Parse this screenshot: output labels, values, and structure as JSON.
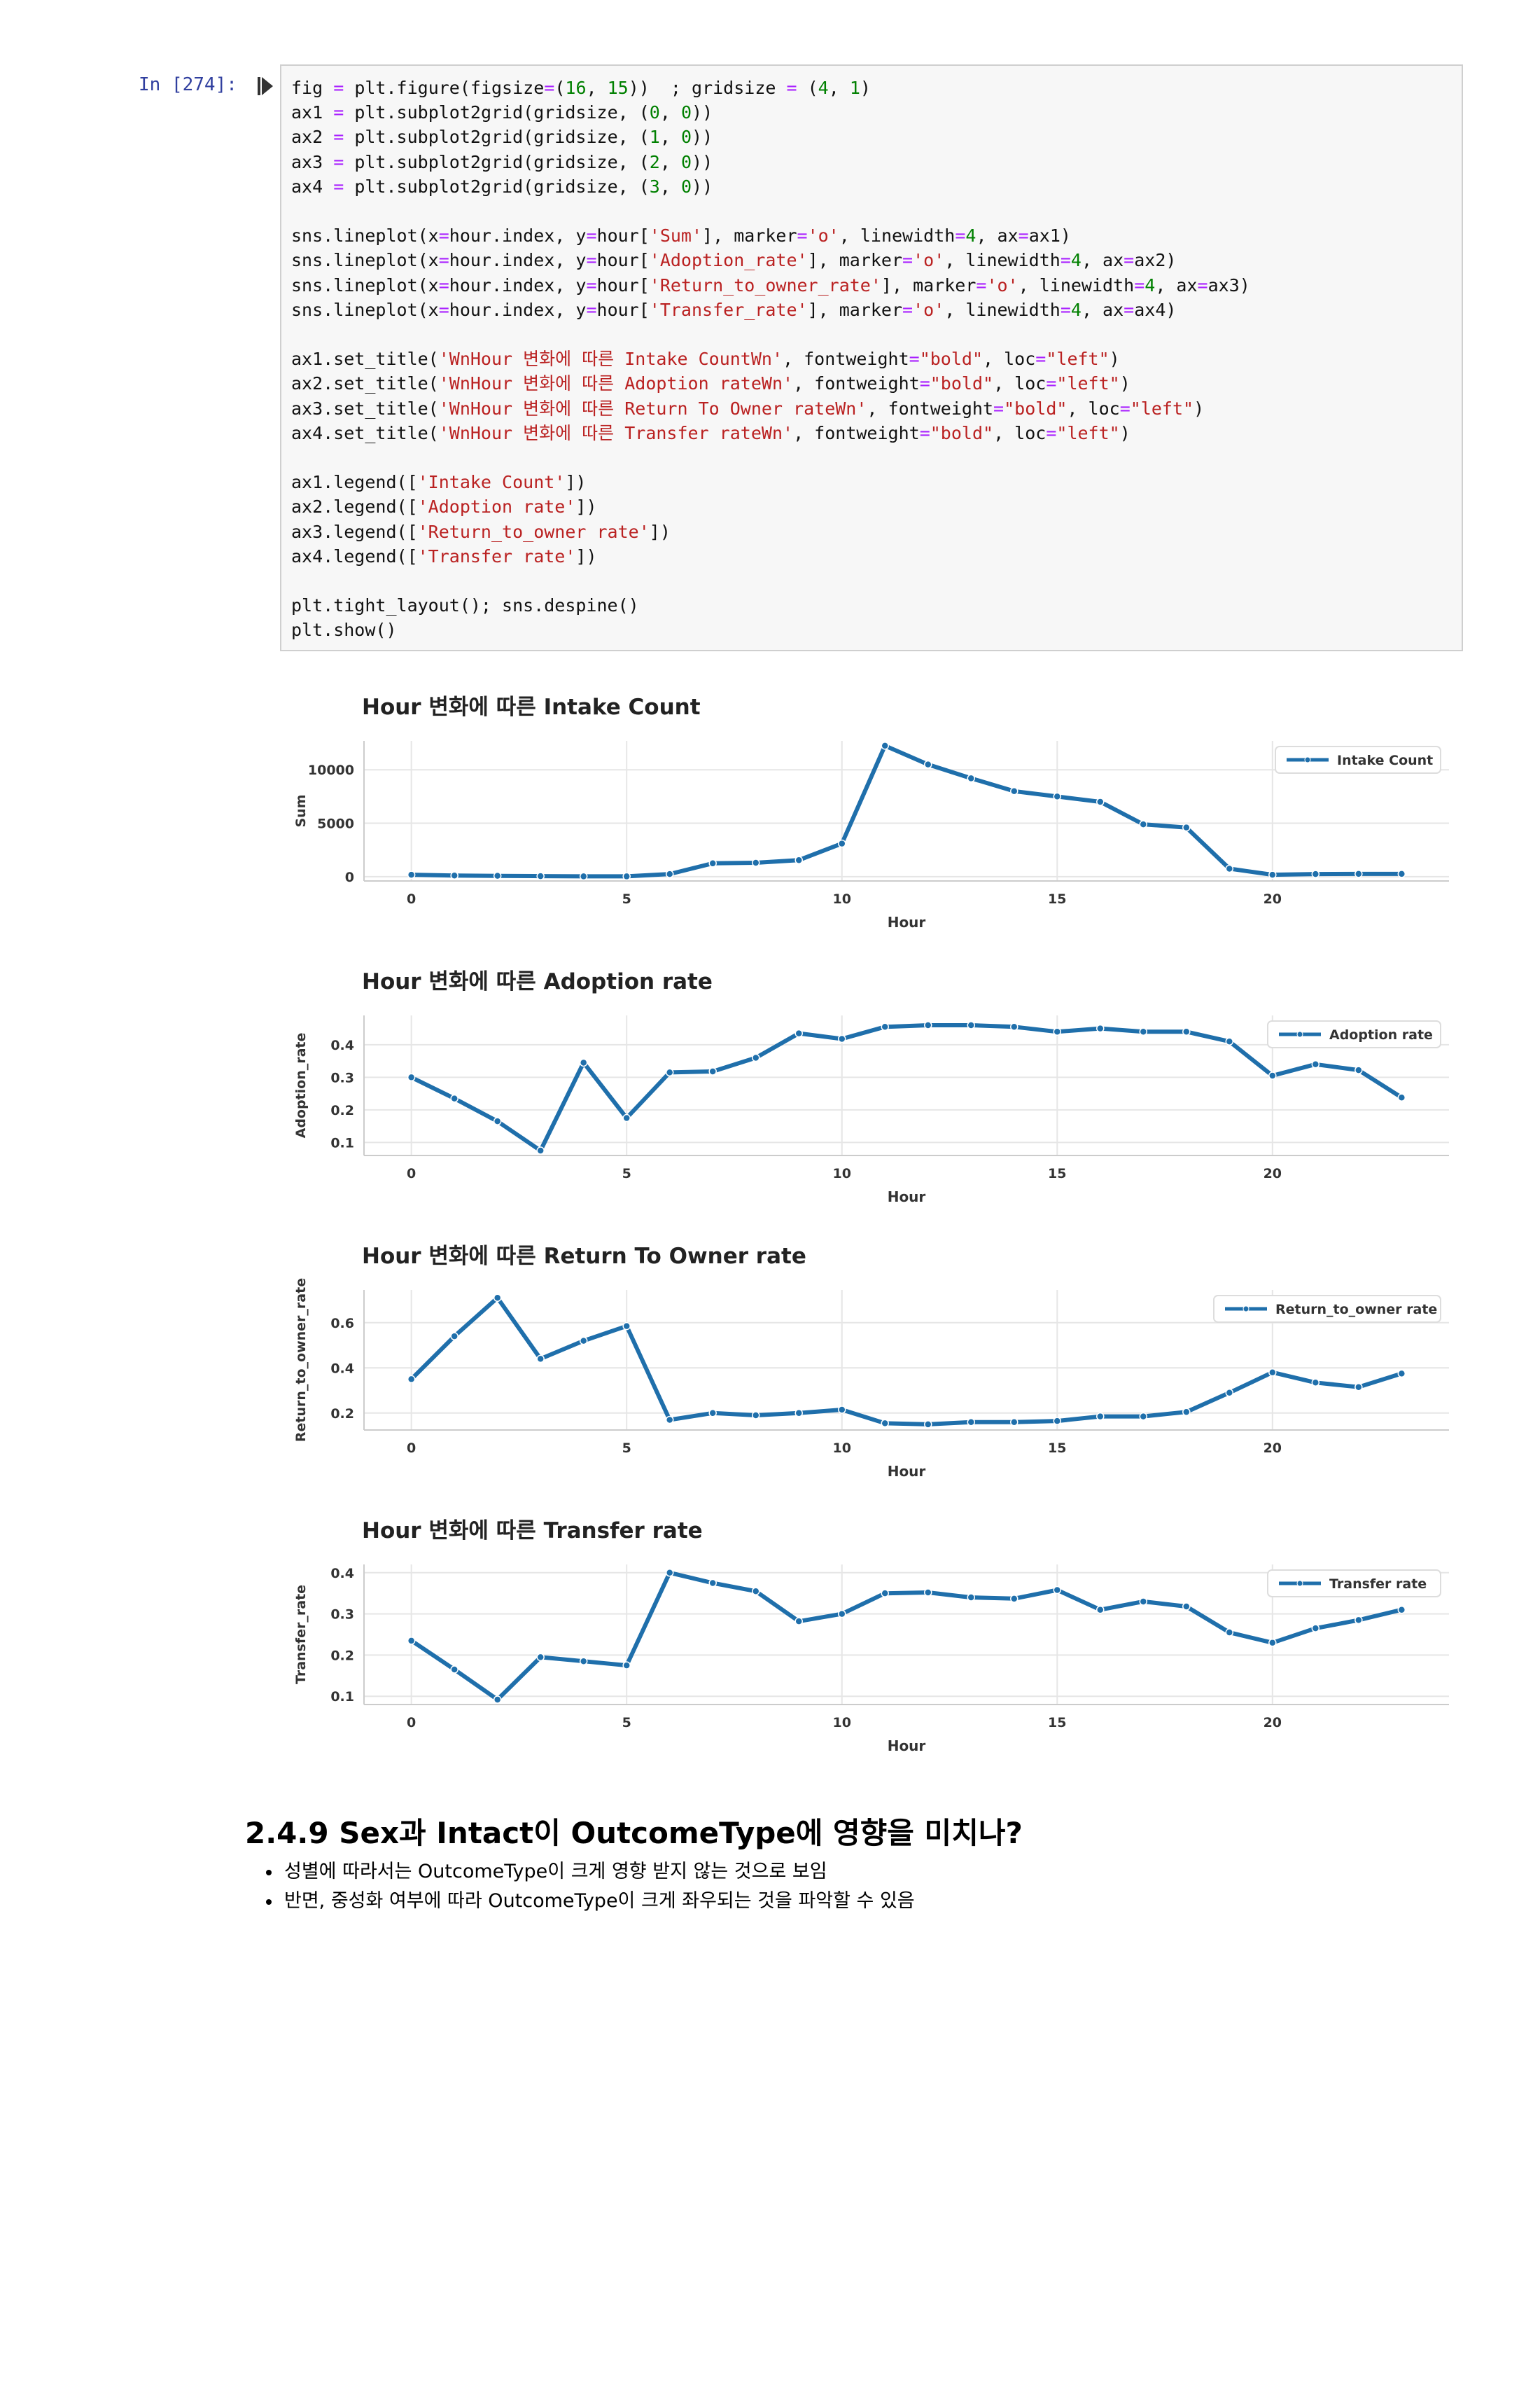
{
  "cell": {
    "prompt": "In [274]:",
    "code_lines": [
      [
        [
          "t",
          "fig "
        ],
        [
          "o",
          "="
        ],
        [
          "t",
          " plt.figure(figsize"
        ],
        [
          "o",
          "="
        ],
        [
          "t",
          "("
        ],
        [
          "n",
          "16"
        ],
        [
          "t",
          ", "
        ],
        [
          "n",
          "15"
        ],
        [
          "t",
          "))  ; gridsize "
        ],
        [
          "o",
          "="
        ],
        [
          "t",
          " ("
        ],
        [
          "n",
          "4"
        ],
        [
          "t",
          ", "
        ],
        [
          "n",
          "1"
        ],
        [
          "t",
          ")"
        ]
      ],
      [
        [
          "t",
          "ax1 "
        ],
        [
          "o",
          "="
        ],
        [
          "t",
          " plt.subplot2grid(gridsize, ("
        ],
        [
          "n",
          "0"
        ],
        [
          "t",
          ", "
        ],
        [
          "n",
          "0"
        ],
        [
          "t",
          "))"
        ]
      ],
      [
        [
          "t",
          "ax2 "
        ],
        [
          "o",
          "="
        ],
        [
          "t",
          " plt.subplot2grid(gridsize, ("
        ],
        [
          "n",
          "1"
        ],
        [
          "t",
          ", "
        ],
        [
          "n",
          "0"
        ],
        [
          "t",
          "))"
        ]
      ],
      [
        [
          "t",
          "ax3 "
        ],
        [
          "o",
          "="
        ],
        [
          "t",
          " plt.subplot2grid(gridsize, ("
        ],
        [
          "n",
          "2"
        ],
        [
          "t",
          ", "
        ],
        [
          "n",
          "0"
        ],
        [
          "t",
          "))"
        ]
      ],
      [
        [
          "t",
          "ax4 "
        ],
        [
          "o",
          "="
        ],
        [
          "t",
          " plt.subplot2grid(gridsize, ("
        ],
        [
          "n",
          "3"
        ],
        [
          "t",
          ", "
        ],
        [
          "n",
          "0"
        ],
        [
          "t",
          "))"
        ]
      ],
      [],
      [
        [
          "t",
          "sns.lineplot(x"
        ],
        [
          "o",
          "="
        ],
        [
          "t",
          "hour.index, y"
        ],
        [
          "o",
          "="
        ],
        [
          "t",
          "hour["
        ],
        [
          "s",
          "'Sum'"
        ],
        [
          "t",
          "], marker"
        ],
        [
          "o",
          "="
        ],
        [
          "s",
          "'o'"
        ],
        [
          "t",
          ", linewidth"
        ],
        [
          "o",
          "="
        ],
        [
          "n",
          "4"
        ],
        [
          "t",
          ", ax"
        ],
        [
          "o",
          "="
        ],
        [
          "t",
          "ax1)"
        ]
      ],
      [
        [
          "t",
          "sns.lineplot(x"
        ],
        [
          "o",
          "="
        ],
        [
          "t",
          "hour.index, y"
        ],
        [
          "o",
          "="
        ],
        [
          "t",
          "hour["
        ],
        [
          "s",
          "'Adoption_rate'"
        ],
        [
          "t",
          "], marker"
        ],
        [
          "o",
          "="
        ],
        [
          "s",
          "'o'"
        ],
        [
          "t",
          ", linewidth"
        ],
        [
          "o",
          "="
        ],
        [
          "n",
          "4"
        ],
        [
          "t",
          ", ax"
        ],
        [
          "o",
          "="
        ],
        [
          "t",
          "ax2)"
        ]
      ],
      [
        [
          "t",
          "sns.lineplot(x"
        ],
        [
          "o",
          "="
        ],
        [
          "t",
          "hour.index, y"
        ],
        [
          "o",
          "="
        ],
        [
          "t",
          "hour["
        ],
        [
          "s",
          "'Return_to_owner_rate'"
        ],
        [
          "t",
          "], marker"
        ],
        [
          "o",
          "="
        ],
        [
          "s",
          "'o'"
        ],
        [
          "t",
          ", linewidth"
        ],
        [
          "o",
          "="
        ],
        [
          "n",
          "4"
        ],
        [
          "t",
          ", ax"
        ],
        [
          "o",
          "="
        ],
        [
          "t",
          "ax3)"
        ]
      ],
      [
        [
          "t",
          "sns.lineplot(x"
        ],
        [
          "o",
          "="
        ],
        [
          "t",
          "hour.index, y"
        ],
        [
          "o",
          "="
        ],
        [
          "t",
          "hour["
        ],
        [
          "s",
          "'Transfer_rate'"
        ],
        [
          "t",
          "], marker"
        ],
        [
          "o",
          "="
        ],
        [
          "s",
          "'o'"
        ],
        [
          "t",
          ", linewidth"
        ],
        [
          "o",
          "="
        ],
        [
          "n",
          "4"
        ],
        [
          "t",
          ", ax"
        ],
        [
          "o",
          "="
        ],
        [
          "t",
          "ax4)"
        ]
      ],
      [],
      [
        [
          "t",
          "ax1.set_title("
        ],
        [
          "s",
          "'WnHour 변화에 따른 Intake CountWn'"
        ],
        [
          "t",
          ", fontweight"
        ],
        [
          "o",
          "="
        ],
        [
          "s",
          "\"bold\""
        ],
        [
          "t",
          ", loc"
        ],
        [
          "o",
          "="
        ],
        [
          "s",
          "\"left\""
        ],
        [
          "t",
          ")"
        ]
      ],
      [
        [
          "t",
          "ax2.set_title("
        ],
        [
          "s",
          "'WnHour 변화에 따른 Adoption rateWn'"
        ],
        [
          "t",
          ", fontweight"
        ],
        [
          "o",
          "="
        ],
        [
          "s",
          "\"bold\""
        ],
        [
          "t",
          ", loc"
        ],
        [
          "o",
          "="
        ],
        [
          "s",
          "\"left\""
        ],
        [
          "t",
          ")"
        ]
      ],
      [
        [
          "t",
          "ax3.set_title("
        ],
        [
          "s",
          "'WnHour 변화에 따른 Return To Owner rateWn'"
        ],
        [
          "t",
          ", fontweight"
        ],
        [
          "o",
          "="
        ],
        [
          "s",
          "\"bold\""
        ],
        [
          "t",
          ", loc"
        ],
        [
          "o",
          "="
        ],
        [
          "s",
          "\"left\""
        ],
        [
          "t",
          ")"
        ]
      ],
      [
        [
          "t",
          "ax4.set_title("
        ],
        [
          "s",
          "'WnHour 변화에 따른 Transfer rateWn'"
        ],
        [
          "t",
          ", fontweight"
        ],
        [
          "o",
          "="
        ],
        [
          "s",
          "\"bold\""
        ],
        [
          "t",
          ", loc"
        ],
        [
          "o",
          "="
        ],
        [
          "s",
          "\"left\""
        ],
        [
          "t",
          ")"
        ]
      ],
      [],
      [
        [
          "t",
          "ax1.legend(["
        ],
        [
          "s",
          "'Intake Count'"
        ],
        [
          "t",
          "])"
        ]
      ],
      [
        [
          "t",
          "ax2.legend(["
        ],
        [
          "s",
          "'Adoption rate'"
        ],
        [
          "t",
          "])"
        ]
      ],
      [
        [
          "t",
          "ax3.legend(["
        ],
        [
          "s",
          "'Return_to_owner rate'"
        ],
        [
          "t",
          "])"
        ]
      ],
      [
        [
          "t",
          "ax4.legend(["
        ],
        [
          "s",
          "'Transfer rate'"
        ],
        [
          "t",
          "])"
        ]
      ],
      [],
      [
        [
          "t",
          "plt.tight_layout(); sns.despine()"
        ]
      ],
      [
        [
          "t",
          "plt.show()"
        ]
      ]
    ]
  },
  "colors": {
    "line": "#1f6fab",
    "grid": "#e6e6e6",
    "axis": "#cccccc"
  },
  "chart_data": [
    {
      "type": "line",
      "title": "Hour 변화에 따른 Intake Count",
      "xlabel": "Hour",
      "ylabel": "Sum",
      "legend": "Intake Count",
      "legend_position": "top-right",
      "grid": true,
      "xlim": [
        -1.1,
        24.1
      ],
      "ylim": [
        -400,
        12700
      ],
      "xticks": [
        0,
        5,
        10,
        15,
        20
      ],
      "yticks": [
        0,
        5000,
        10000
      ],
      "x": [
        0,
        1,
        2,
        3,
        4,
        5,
        6,
        7,
        8,
        9,
        10,
        11,
        12,
        13,
        14,
        15,
        16,
        17,
        18,
        19,
        20,
        21,
        22,
        23
      ],
      "values": [
        180,
        110,
        80,
        50,
        30,
        30,
        250,
        1250,
        1300,
        1550,
        3100,
        12250,
        10500,
        9200,
        8000,
        7500,
        7000,
        4900,
        4600,
        750,
        180,
        250,
        260,
        260
      ]
    },
    {
      "type": "line",
      "title": "Hour 변화에 따른 Adoption rate",
      "xlabel": "Hour",
      "ylabel": "Adoption_rate",
      "legend": "Adoption rate",
      "legend_position": "top-right",
      "grid": true,
      "xlim": [
        -1.1,
        24.1
      ],
      "ylim": [
        0.06,
        0.49
      ],
      "xticks": [
        0,
        5,
        10,
        15,
        20
      ],
      "yticks": [
        0.1,
        0.2,
        0.3,
        0.4
      ],
      "ytick_labels": [
        "0.1",
        "0.2",
        "0.3",
        "0.4"
      ],
      "x": [
        0,
        1,
        2,
        3,
        4,
        5,
        6,
        7,
        8,
        9,
        10,
        11,
        12,
        13,
        14,
        15,
        16,
        17,
        18,
        19,
        20,
        21,
        22,
        23
      ],
      "values": [
        0.3,
        0.235,
        0.165,
        0.075,
        0.345,
        0.175,
        0.315,
        0.318,
        0.36,
        0.435,
        0.418,
        0.455,
        0.46,
        0.46,
        0.455,
        0.44,
        0.45,
        0.44,
        0.44,
        0.41,
        0.305,
        0.34,
        0.322,
        0.238
      ]
    },
    {
      "type": "line",
      "title": "Hour 변화에 따른 Return To Owner rate",
      "xlabel": "Hour",
      "ylabel": "Return_to_owner_rate",
      "legend": "Return_to_owner rate",
      "legend_position": "top-right",
      "grid": true,
      "xlim": [
        -1.1,
        24.1
      ],
      "ylim": [
        0.125,
        0.745
      ],
      "xticks": [
        0,
        5,
        10,
        15,
        20
      ],
      "yticks": [
        0.2,
        0.4,
        0.6
      ],
      "ytick_labels": [
        "0.2",
        "0.4",
        "0.6"
      ],
      "x": [
        0,
        1,
        2,
        3,
        4,
        5,
        6,
        7,
        8,
        9,
        10,
        11,
        12,
        13,
        14,
        15,
        16,
        17,
        18,
        19,
        20,
        21,
        22,
        23
      ],
      "values": [
        0.35,
        0.54,
        0.71,
        0.44,
        0.52,
        0.585,
        0.17,
        0.2,
        0.19,
        0.2,
        0.215,
        0.155,
        0.15,
        0.16,
        0.16,
        0.165,
        0.185,
        0.185,
        0.205,
        0.29,
        0.38,
        0.335,
        0.315,
        0.375
      ]
    },
    {
      "type": "line",
      "title": "Hour 변화에 따른 Transfer rate",
      "xlabel": "Hour",
      "ylabel": "Transfer_rate",
      "legend": "Transfer rate",
      "legend_position": "top-right",
      "grid": true,
      "xlim": [
        -1.1,
        24.1
      ],
      "ylim": [
        0.08,
        0.42
      ],
      "xticks": [
        0,
        5,
        10,
        15,
        20
      ],
      "yticks": [
        0.1,
        0.2,
        0.3,
        0.4
      ],
      "ytick_labels": [
        "0.1",
        "0.2",
        "0.3",
        "0.4"
      ],
      "x": [
        0,
        1,
        2,
        3,
        4,
        5,
        6,
        7,
        8,
        9,
        10,
        11,
        12,
        13,
        14,
        15,
        16,
        17,
        18,
        19,
        20,
        21,
        22,
        23
      ],
      "values": [
        0.235,
        0.165,
        0.092,
        0.195,
        0.185,
        0.175,
        0.4,
        0.375,
        0.355,
        0.282,
        0.3,
        0.35,
        0.352,
        0.34,
        0.337,
        0.358,
        0.31,
        0.33,
        0.318,
        0.255,
        0.23,
        0.265,
        0.285,
        0.31
      ]
    }
  ],
  "section": {
    "heading": "2.4.9 Sex과 Intact이 OutcomeType에 영향을 미치나?",
    "bullets": [
      "성별에 따라서는 OutcomeType이 크게 영향 받지 않는 것으로 보임",
      "반면, 중성화 여부에 따라 OutcomeType이 크게 좌우되는 것을 파악할 수 있음"
    ]
  }
}
